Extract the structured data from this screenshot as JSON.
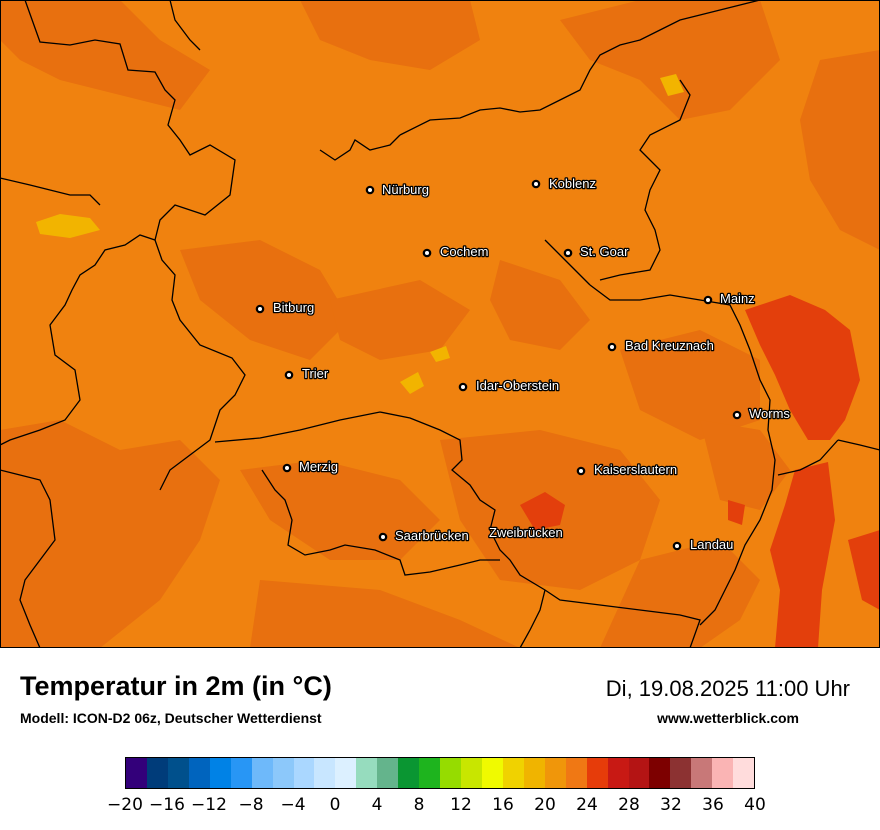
{
  "map": {
    "base_color": "#F0820F",
    "cities": [
      {
        "name": "Nürburg"
      },
      {
        "name": "Koblenz"
      },
      {
        "name": "Cochem"
      },
      {
        "name": "St. Goar"
      },
      {
        "name": "Bitburg"
      },
      {
        "name": "Mainz"
      },
      {
        "name": "Bad Kreuznach"
      },
      {
        "name": "Trier"
      },
      {
        "name": "Idar-Oberstein"
      },
      {
        "name": "Worms"
      },
      {
        "name": "Merzig"
      },
      {
        "name": "Kaiserslautern"
      },
      {
        "name": "Saarbrücken"
      },
      {
        "name": "Zweibrücken"
      },
      {
        "name": "Landau"
      }
    ]
  },
  "footer": {
    "title": "Temperatur in 2m (in °C)",
    "subtitle": "Modell: ICON-D2 06z, Deutscher Wetterdienst",
    "date": "Di, 19.08.2025 11:00 Uhr",
    "site": "www.wetterblick.com"
  },
  "colorbar": {
    "colors": [
      "#33007A",
      "#003C7A",
      "#00508C",
      "#0064BE",
      "#0082E6",
      "#2896F5",
      "#6EB9FA",
      "#8CC8FA",
      "#AAD7FF",
      "#C8E6FF",
      "#DCF0FF",
      "#96DCBE",
      "#64B48C",
      "#0A9632",
      "#1EB41E",
      "#96DC00",
      "#C8E600",
      "#F0FA00",
      "#F0D200",
      "#F0B400",
      "#F0960A",
      "#F07814",
      "#E63C0A",
      "#C81914",
      "#B41414",
      "#7D0000",
      "#8C3232",
      "#C87878",
      "#FAB4B4",
      "#FFDCDC"
    ],
    "ticks": [
      "−20",
      "−16",
      "−12",
      "−8",
      "−4",
      "0",
      "4",
      "8",
      "12",
      "16",
      "20",
      "24",
      "28",
      "32",
      "36",
      "40"
    ]
  }
}
